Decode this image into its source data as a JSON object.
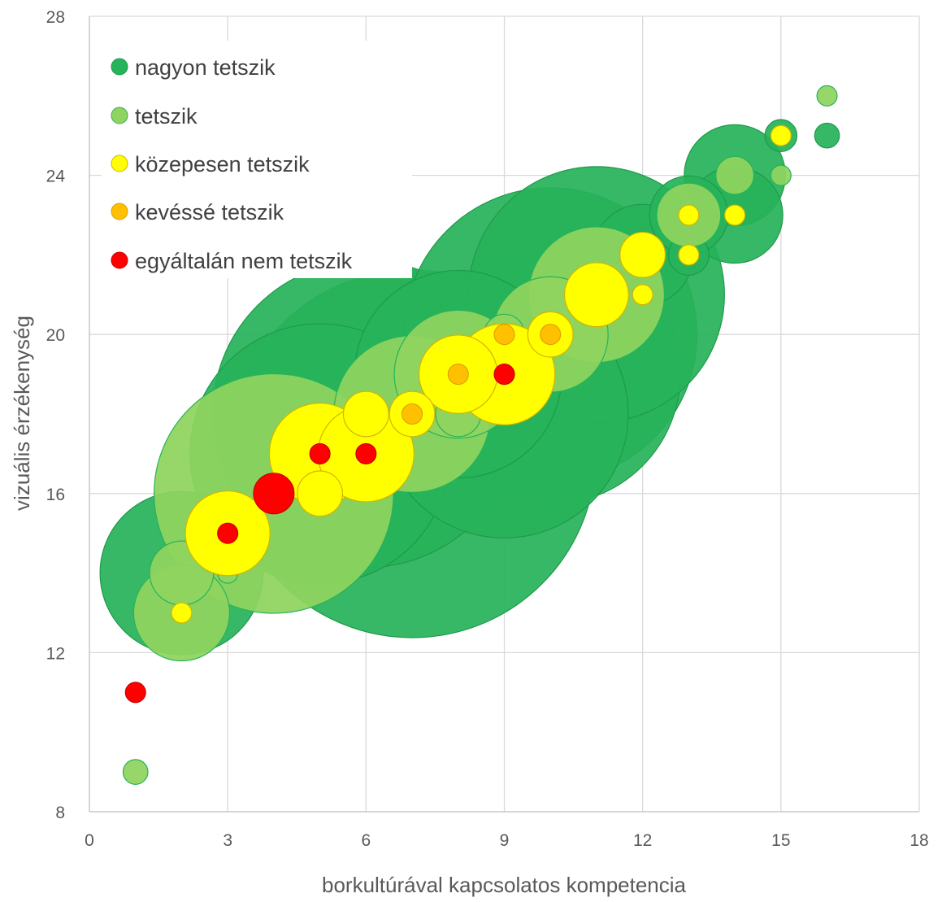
{
  "chart_data": {
    "type": "scatter",
    "subtype": "bubble",
    "title": "",
    "xlabel": "borkultúrával kapcsolatos kompetencia",
    "ylabel": "vizuális érzékenység",
    "xlim": [
      0,
      18
    ],
    "ylim": [
      8,
      28
    ],
    "xticks": [
      "0",
      "3",
      "6",
      "9",
      "12",
      "15",
      "18"
    ],
    "yticks": [
      "8",
      "12",
      "16",
      "20",
      "24",
      "28"
    ],
    "grid": true,
    "legend_position": "top-left",
    "series": [
      {
        "name": "nagyon tetszik",
        "color": "#27b35a",
        "points": [
          {
            "x": 2,
            "y": 14,
            "size": 1.3
          },
          {
            "x": 5,
            "y": 17,
            "size": 3.3
          },
          {
            "x": 6,
            "y": 18,
            "size": 4.6
          },
          {
            "x": 7,
            "y": 17,
            "size": 6.6
          },
          {
            "x": 8,
            "y": 19,
            "size": 2.1
          },
          {
            "x": 9,
            "y": 18,
            "size": 3.0
          },
          {
            "x": 10,
            "y": 19,
            "size": 3.3
          },
          {
            "x": 11,
            "y": 21,
            "size": 3.2
          },
          {
            "x": 10,
            "y": 20,
            "size": 4.2
          },
          {
            "x": 12,
            "y": 22,
            "size": 0.5
          },
          {
            "x": 13,
            "y": 23,
            "size": 0.3
          },
          {
            "x": 13,
            "y": 22,
            "size": 0.08
          },
          {
            "x": 14,
            "y": 24,
            "size": 0.5
          },
          {
            "x": 14,
            "y": 23,
            "size": 0.45
          },
          {
            "x": 15,
            "y": 25,
            "size": 0.05
          },
          {
            "x": 16,
            "y": 25,
            "size": 0.03
          }
        ]
      },
      {
        "name": "tetszik",
        "color": "#8fd45f",
        "points": [
          {
            "x": 1,
            "y": 9,
            "size": 0.03
          },
          {
            "x": 2,
            "y": 14,
            "size": 0.2
          },
          {
            "x": 2,
            "y": 13,
            "size": 0.45
          },
          {
            "x": 3,
            "y": 14,
            "size": 0.02
          },
          {
            "x": 4,
            "y": 16,
            "size": 2.8
          },
          {
            "x": 7,
            "y": 18,
            "size": 1.2
          },
          {
            "x": 8,
            "y": 19,
            "size": 0.8
          },
          {
            "x": 8,
            "y": 18,
            "size": 0.1
          },
          {
            "x": 9,
            "y": 20,
            "size": 0.08
          },
          {
            "x": 10,
            "y": 20,
            "size": 0.65
          },
          {
            "x": 11,
            "y": 21,
            "size": 0.9
          },
          {
            "x": 13,
            "y": 23,
            "size": 0.2
          },
          {
            "x": 14,
            "y": 24,
            "size": 0.07
          },
          {
            "x": 15,
            "y": 24,
            "size": 0.02
          },
          {
            "x": 16,
            "y": 26,
            "size": 0.02
          }
        ]
      },
      {
        "name": "közepesen tetszik",
        "color": "#ffff00",
        "points": [
          {
            "x": 2,
            "y": 13,
            "size": 0.02
          },
          {
            "x": 3,
            "y": 15,
            "size": 0.35
          },
          {
            "x": 5,
            "y": 17,
            "size": 0.5
          },
          {
            "x": 5,
            "y": 16,
            "size": 0.1
          },
          {
            "x": 6,
            "y": 18,
            "size": 0.1
          },
          {
            "x": 6,
            "y": 17,
            "size": 0.45
          },
          {
            "x": 7,
            "y": 18,
            "size": 0.1
          },
          {
            "x": 8,
            "y": 19,
            "size": 0.3
          },
          {
            "x": 9,
            "y": 19,
            "size": 0.5
          },
          {
            "x": 10,
            "y": 20,
            "size": 0.1
          },
          {
            "x": 11,
            "y": 21,
            "size": 0.2
          },
          {
            "x": 12,
            "y": 22,
            "size": 0.1
          },
          {
            "x": 12,
            "y": 21,
            "size": 0.02
          },
          {
            "x": 13,
            "y": 23,
            "size": 0.02
          },
          {
            "x": 13,
            "y": 22,
            "size": 0.02
          },
          {
            "x": 14,
            "y": 23,
            "size": 0.02
          },
          {
            "x": 15,
            "y": 25,
            "size": 0.02
          }
        ]
      },
      {
        "name": "kevéssé tetszik",
        "color": "#ffc000",
        "points": [
          {
            "x": 7,
            "y": 18,
            "size": 0.02
          },
          {
            "x": 8,
            "y": 19,
            "size": 0.02
          },
          {
            "x": 9,
            "y": 20,
            "size": 0.02
          },
          {
            "x": 10,
            "y": 20,
            "size": 0.02
          }
        ]
      },
      {
        "name": "egyáltalán nem tetszik",
        "color": "#ff0000",
        "points": [
          {
            "x": 1,
            "y": 11,
            "size": 0.02
          },
          {
            "x": 3,
            "y": 15,
            "size": 0.02
          },
          {
            "x": 4,
            "y": 16,
            "size": 0.08
          },
          {
            "x": 5,
            "y": 17,
            "size": 0.02
          },
          {
            "x": 6,
            "y": 17,
            "size": 0.02
          },
          {
            "x": 9,
            "y": 19,
            "size": 0.02
          }
        ]
      }
    ]
  }
}
